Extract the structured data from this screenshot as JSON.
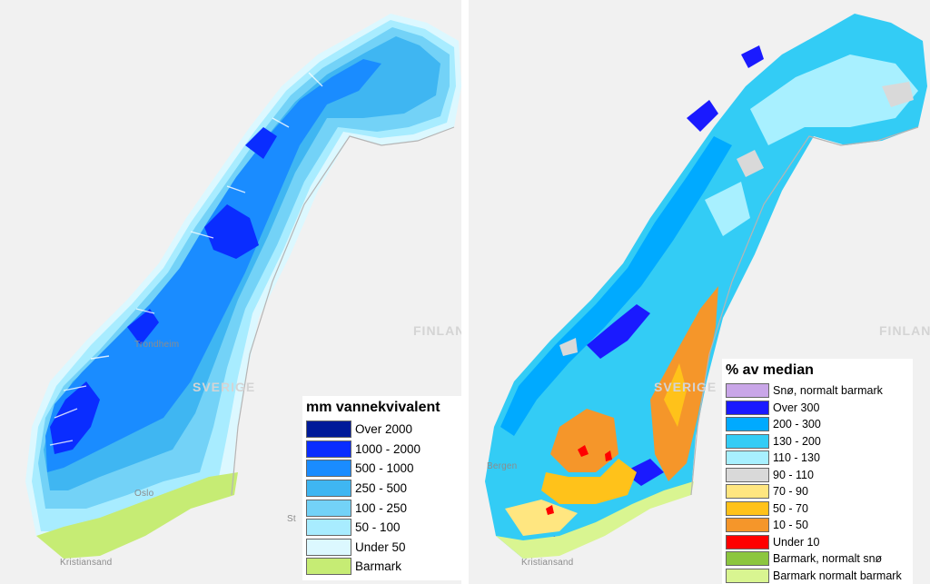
{
  "left_map": {
    "places": {
      "sverige": "SVERIGE",
      "finland": "FINLAN",
      "oslo": "Oslo",
      "kristiansand": "Kristiansand",
      "trondheim": "Trondheim",
      "st": "St"
    },
    "legend": {
      "title": "mm vannekvivalent",
      "items": [
        {
          "label": "Over 2000",
          "color": "#001a99"
        },
        {
          "label": "1000 - 2000",
          "color": "#0a2dff"
        },
        {
          "label": "500 - 1000",
          "color": "#1a8cff"
        },
        {
          "label": "250 - 500",
          "color": "#3fb6f2"
        },
        {
          "label": "100 - 250",
          "color": "#73d2f7"
        },
        {
          "label": "50 - 100",
          "color": "#a8ecff"
        },
        {
          "label": "Under 50",
          "color": "#dcf8ff"
        },
        {
          "label": "Barmark",
          "color": "#c6ec74"
        }
      ]
    }
  },
  "right_map": {
    "places": {
      "sverige": "SVERIGE",
      "finland": "FINLAN",
      "bergen": "Bergen",
      "kristiansand": "Kristiansand"
    },
    "legend": {
      "title": "% av median",
      "items": [
        {
          "label": "Snø, normalt barmark",
          "color": "#c9a6e8"
        },
        {
          "label": "Over 300",
          "color": "#1a1aff"
        },
        {
          "label": "200 - 300",
          "color": "#00aaff"
        },
        {
          "label": "130 - 200",
          "color": "#33ccf5"
        },
        {
          "label": "110 - 130",
          "color": "#a8f0ff"
        },
        {
          "label": "90 - 110",
          "color": "#d9d9d9"
        },
        {
          "label": "70 - 90",
          "color": "#ffe680"
        },
        {
          "label": "50 - 70",
          "color": "#ffc21a"
        },
        {
          "label": "10 - 50",
          "color": "#f5962a"
        },
        {
          "label": "Under 10",
          "color": "#ff0000"
        },
        {
          "label": "Barmark, normalt snø",
          "color": "#8cc63f"
        },
        {
          "label": "Barmark normalt barmark",
          "color": "#d9f591"
        }
      ]
    }
  }
}
